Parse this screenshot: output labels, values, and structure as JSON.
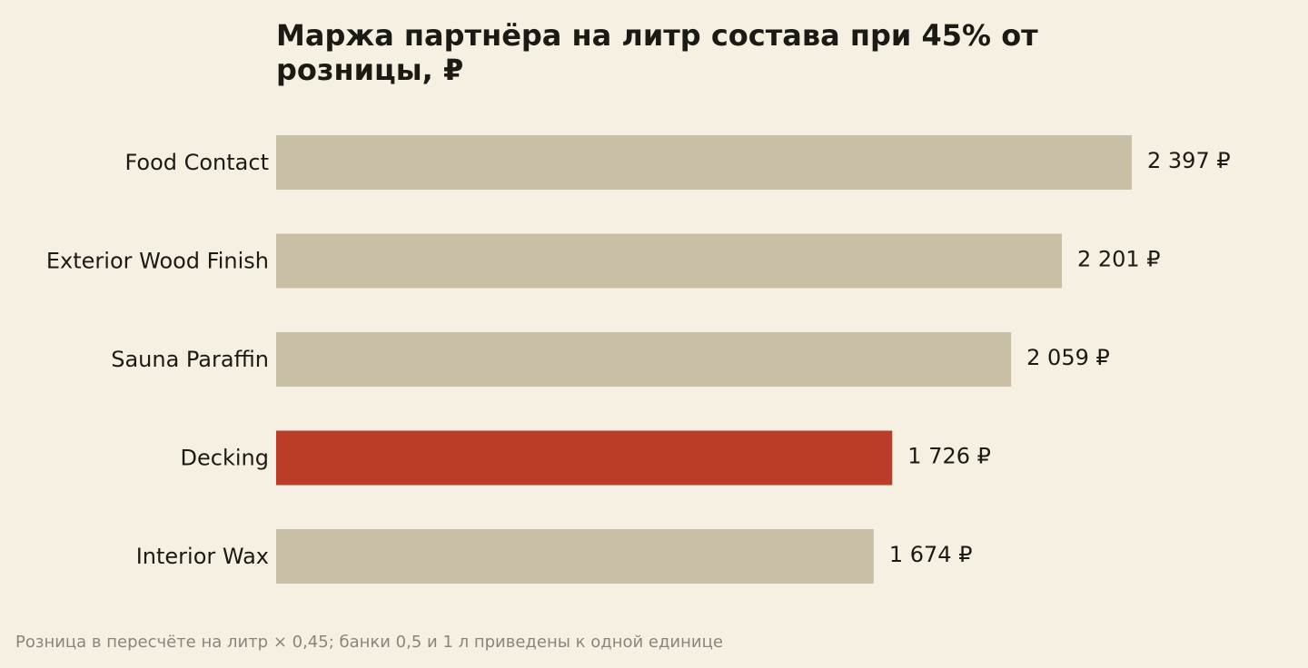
{
  "title": "Маржа партнёра на литр состава при 45% от розницы, ₽",
  "footnote": "Розница в пересчёте на литр × 0,45; банки 0,5 и 1 л приведены к одной единице",
  "chart_data": {
    "type": "bar",
    "orientation": "horizontal",
    "title": "Маржа партнёра на литр состава при 45% от розницы, ₽",
    "categories": [
      "Food Contact",
      "Exterior Wood Finish",
      "Sauna Paraffin",
      "Decking",
      "Interior Wax"
    ],
    "values": [
      2397,
      2201,
      2059,
      1726,
      1674
    ],
    "value_labels": [
      "2 397 ₽",
      "2 201 ₽",
      "2 059 ₽",
      "1 726 ₽",
      "1 674 ₽"
    ],
    "xlim": [
      0,
      2397
    ],
    "grid": false,
    "highlight_category": "Decking",
    "colors": {
      "default_bar": "#c9bfa6",
      "highlight_bar": "#bb3d28",
      "background": "#f6f0e3",
      "text": "#1c1a14",
      "footnote_text": "#8a857b"
    }
  }
}
